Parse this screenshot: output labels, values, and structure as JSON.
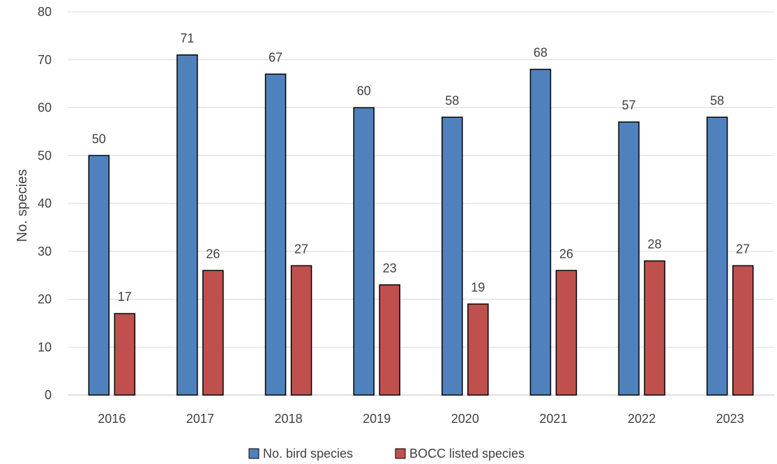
{
  "chart_data": {
    "type": "bar",
    "title": "",
    "xlabel": "",
    "ylabel": "No. species",
    "ylim": [
      0,
      80
    ],
    "yticks": [
      0,
      10,
      20,
      30,
      40,
      50,
      60,
      70,
      80
    ],
    "grid": "horizontal",
    "legend_position": "bottom",
    "categories": [
      "2016",
      "2017",
      "2018",
      "2019",
      "2020",
      "2021",
      "2022",
      "2023"
    ],
    "series": [
      {
        "name": "No. bird species",
        "color": "#4f81bd",
        "values": [
          50,
          71,
          67,
          60,
          58,
          68,
          57,
          58
        ]
      },
      {
        "name": "BOCC listed species",
        "color": "#c0504d",
        "values": [
          17,
          26,
          27,
          23,
          19,
          26,
          28,
          27
        ]
      }
    ]
  }
}
